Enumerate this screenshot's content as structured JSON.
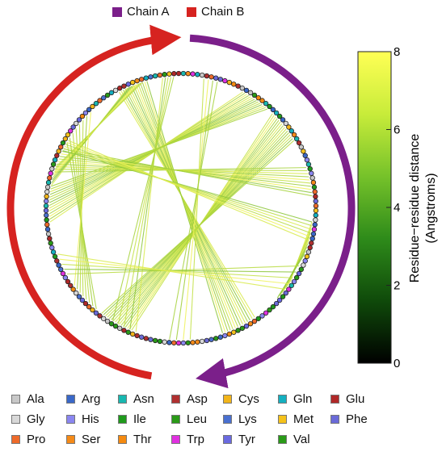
{
  "legend": {
    "chains": [
      {
        "label": "Chain A",
        "color": "#7b1f8a"
      },
      {
        "label": "Chain B",
        "color": "#d62320"
      }
    ]
  },
  "colorbar": {
    "title": "Residue−residue distance (Angstroms)",
    "title_line1": "Residue−residue distance",
    "title_line2": "(Angstroms)",
    "min": 0,
    "max": 8,
    "ticks": [
      "0",
      "2",
      "4",
      "6",
      "8"
    ],
    "gradient": [
      "#000000",
      "#0f4a0a",
      "#2e8b1a",
      "#76c22a",
      "#c8ec3a",
      "#ffff55"
    ]
  },
  "amino_acids": [
    {
      "label": "Ala",
      "color": "#c8c8c8"
    },
    {
      "label": "Arg",
      "color": "#3a68c8"
    },
    {
      "label": "Asn",
      "color": "#18b8b0"
    },
    {
      "label": "Asp",
      "color": "#b03030"
    },
    {
      "label": "Cys",
      "color": "#f2b51a"
    },
    {
      "label": "Gln",
      "color": "#14b0c0"
    },
    {
      "label": "Glu",
      "color": "#b02828"
    },
    {
      "label": "Gly",
      "color": "#d8d8d8"
    },
    {
      "label": "His",
      "color": "#8a86f0"
    },
    {
      "label": "Ile",
      "color": "#1f9a1c"
    },
    {
      "label": "Leu",
      "color": "#2a9a18"
    },
    {
      "label": "Lys",
      "color": "#4a70d0"
    },
    {
      "label": "Met",
      "color": "#f5c21a"
    },
    {
      "label": "Phe",
      "color": "#6a6ad8"
    },
    {
      "label": "Pro",
      "color": "#ee6a2a"
    },
    {
      "label": "Ser",
      "color": "#f58a18"
    },
    {
      "label": "Thr",
      "color": "#f58a10"
    },
    {
      "label": "Trp",
      "color": "#e030e0"
    },
    {
      "label": "Tyr",
      "color": "#6a6ae0"
    },
    {
      "label": "Val",
      "color": "#2a9a18"
    }
  ]
}
